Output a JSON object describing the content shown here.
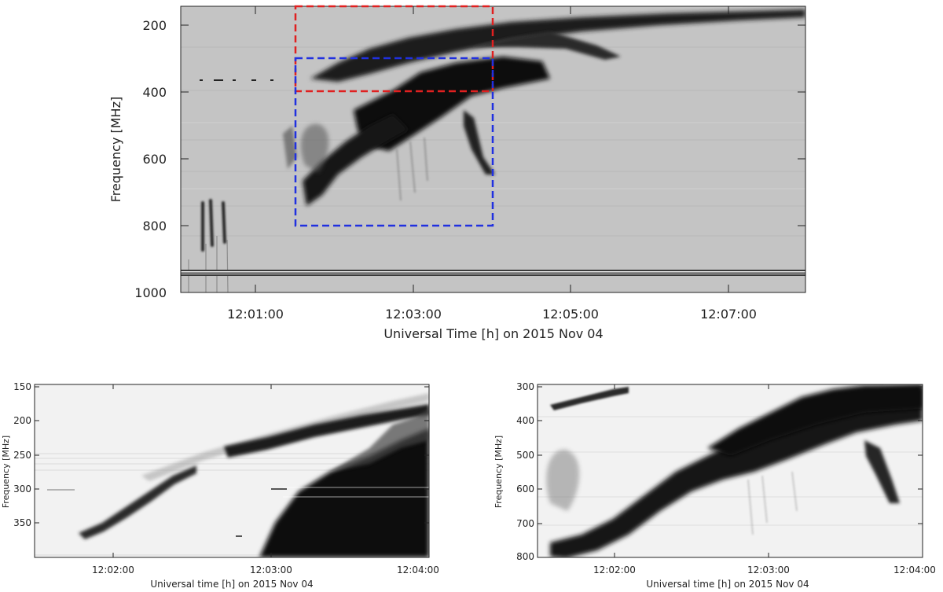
{
  "chart_data": [
    {
      "type": "heatmap",
      "panel": "main",
      "title": "",
      "xlabel": "Universal Time [h] on 2015 Nov 04",
      "ylabel": "Frequency [MHz]",
      "x_range": [
        "12:00:00",
        "12:08:00"
      ],
      "ylim": [
        1000,
        150
      ],
      "x_ticks": [
        "12:01:00",
        "12:03:00",
        "12:05:00",
        "12:07:00"
      ],
      "y_ticks": [
        200,
        400,
        600,
        800,
        1000
      ],
      "colormap": "grayscale-inverted",
      "highlight_boxes": [
        {
          "color": "#e02020",
          "t_start": "12:01:30",
          "t_end": "12:04:00",
          "f_low": 150,
          "f_high": 400
        },
        {
          "color": "#2030e0",
          "t_start": "12:01:30",
          "t_end": "12:04:00",
          "f_low": 300,
          "f_high": 800
        }
      ]
    },
    {
      "type": "heatmap",
      "panel": "zoom-red",
      "title": "",
      "xlabel": "Universal time [h] on 2015 Nov 04",
      "ylabel": "Frequency [MHz]",
      "x_range": [
        "12:01:30",
        "12:04:00"
      ],
      "ylim": [
        400,
        150
      ],
      "x_ticks": [
        "12:02:00",
        "12:03:00",
        "12:04:00"
      ],
      "y_ticks": [
        150,
        200,
        250,
        300,
        350
      ],
      "colormap": "grayscale-inverted"
    },
    {
      "type": "heatmap",
      "panel": "zoom-blue",
      "title": "",
      "xlabel": "Universal time [h] on 2015 Nov 04",
      "ylabel": "Frequency [MHz]",
      "x_range": [
        "12:01:30",
        "12:04:00"
      ],
      "ylim": [
        805,
        300
      ],
      "x_ticks": [
        "12:02:00",
        "12:03:00",
        "12:04:00"
      ],
      "y_ticks": [
        300,
        400,
        500,
        600,
        700,
        800
      ],
      "colormap": "grayscale-inverted"
    }
  ]
}
